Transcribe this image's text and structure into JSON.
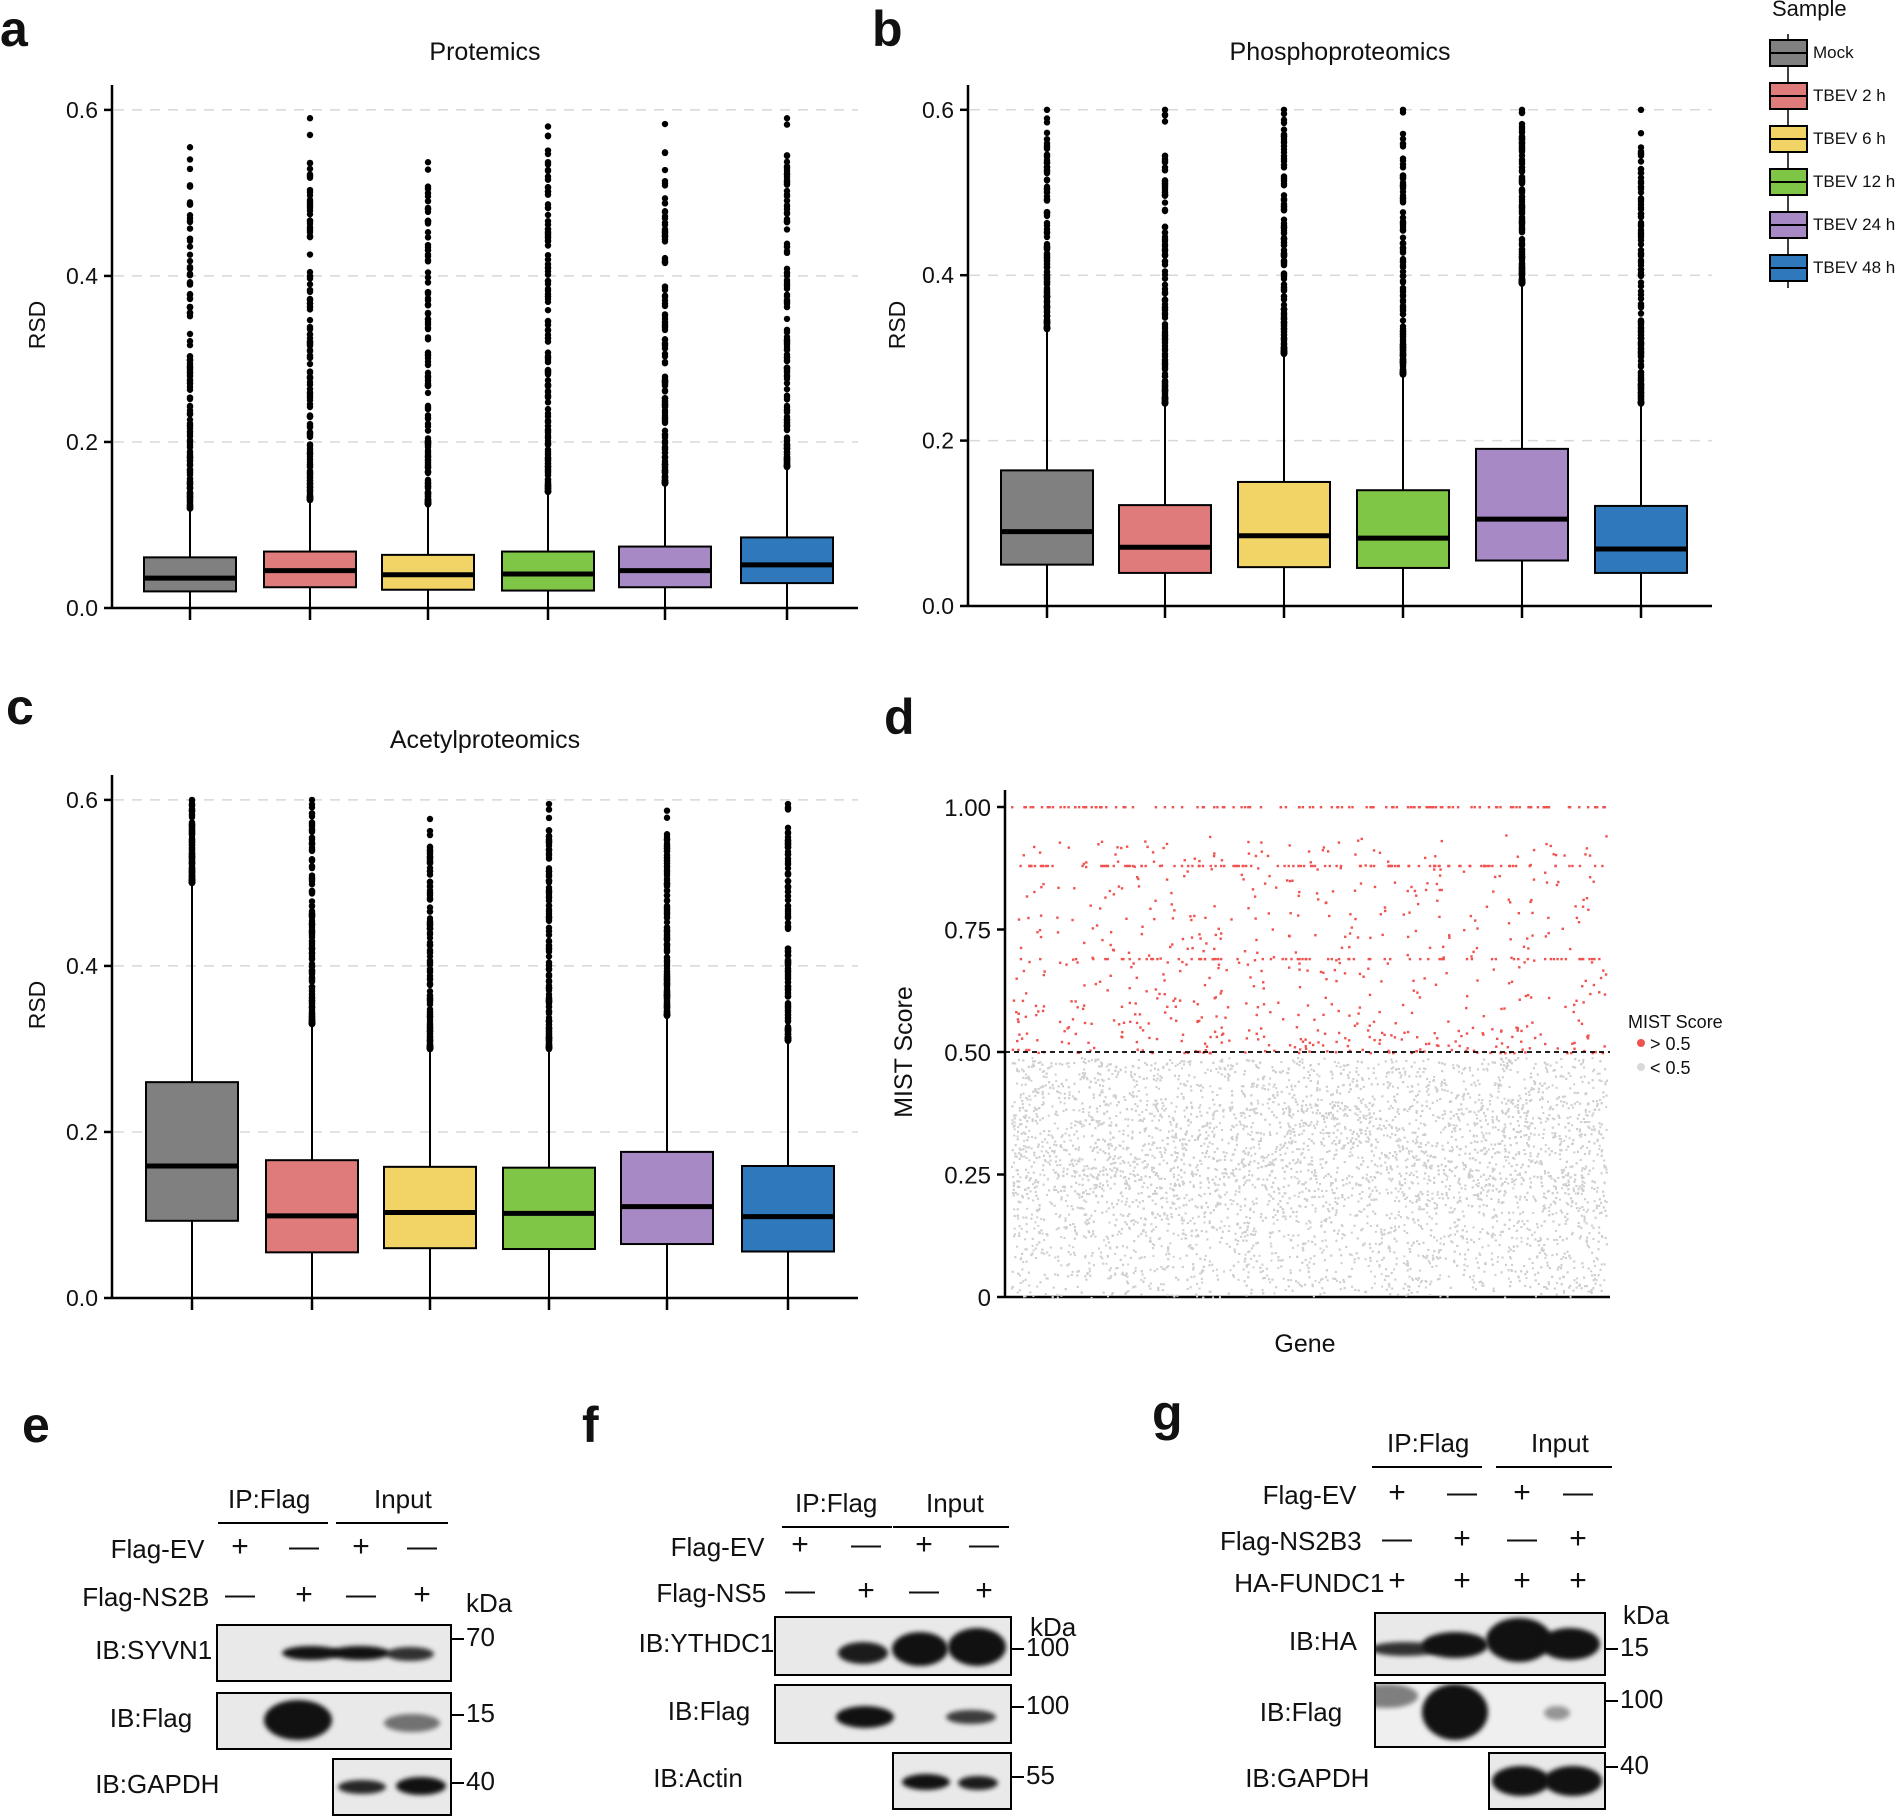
{
  "panels": {
    "a": "a",
    "b": "b",
    "c": "c",
    "d": "d",
    "e": "e",
    "f": "f",
    "g": "g"
  },
  "legend": {
    "title": "Sample",
    "entries": [
      {
        "label": "Mock",
        "color": "#808080"
      },
      {
        "label": "TBEV 2 h",
        "color": "#e07b7b"
      },
      {
        "label": "TBEV 6 h",
        "color": "#f2d466"
      },
      {
        "label": "TBEV 12 h",
        "color": "#80c646"
      },
      {
        "label": "TBEV 24 h",
        "color": "#a689c5"
      },
      {
        "label": "TBEV 48 h",
        "color": "#2f78bb"
      }
    ]
  },
  "chart_data": [
    {
      "type": "box",
      "panel": "a",
      "title": "Protemics",
      "ylabel": "RSD",
      "xlabel": "",
      "ylim": [
        0,
        0.63
      ],
      "yticks": [
        "0.0",
        "0.2",
        "0.4",
        "0.6"
      ],
      "grid": "dashed-horizontal",
      "categories": [
        "Mock",
        "TBEV 2 h",
        "TBEV 6 h",
        "TBEV 12 h",
        "TBEV 24 h",
        "TBEV 48 h"
      ],
      "boxes": [
        {
          "q1": 0.02,
          "median": 0.036,
          "q3": 0.061,
          "whisker_low": 0,
          "whisker_high": 0.12,
          "max_outlier": 0.555
        },
        {
          "q1": 0.025,
          "median": 0.045,
          "q3": 0.068,
          "whisker_low": 0,
          "whisker_high": 0.13,
          "max_outlier": 0.59
        },
        {
          "q1": 0.022,
          "median": 0.04,
          "q3": 0.064,
          "whisker_low": 0,
          "whisker_high": 0.125,
          "max_outlier": 0.537
        },
        {
          "q1": 0.021,
          "median": 0.041,
          "q3": 0.068,
          "whisker_low": 0,
          "whisker_high": 0.14,
          "max_outlier": 0.58
        },
        {
          "q1": 0.025,
          "median": 0.045,
          "q3": 0.074,
          "whisker_low": 0,
          "whisker_high": 0.15,
          "max_outlier": 0.583
        },
        {
          "q1": 0.03,
          "median": 0.052,
          "q3": 0.085,
          "whisker_low": 0,
          "whisker_high": 0.17,
          "max_outlier": 0.59
        }
      ]
    },
    {
      "type": "box",
      "panel": "b",
      "title": "Phosphoproteomics",
      "ylabel": "RSD",
      "xlabel": "",
      "ylim": [
        0,
        0.63
      ],
      "yticks": [
        "0.0",
        "0.2",
        "0.4",
        "0.6"
      ],
      "grid": "dashed-horizontal",
      "categories": [
        "Mock",
        "TBEV 2 h",
        "TBEV 6 h",
        "TBEV 12 h",
        "TBEV 24 h",
        "TBEV 48 h"
      ],
      "boxes": [
        {
          "q1": 0.05,
          "median": 0.09,
          "q3": 0.164,
          "whisker_low": 0,
          "whisker_high": 0.335,
          "max_outlier": 0.6
        },
        {
          "q1": 0.04,
          "median": 0.071,
          "q3": 0.122,
          "whisker_low": 0,
          "whisker_high": 0.245,
          "max_outlier": 0.6
        },
        {
          "q1": 0.047,
          "median": 0.085,
          "q3": 0.15,
          "whisker_low": 0,
          "whisker_high": 0.305,
          "max_outlier": 0.6
        },
        {
          "q1": 0.046,
          "median": 0.082,
          "q3": 0.14,
          "whisker_low": 0,
          "whisker_high": 0.28,
          "max_outlier": 0.6
        },
        {
          "q1": 0.055,
          "median": 0.105,
          "q3": 0.19,
          "whisker_low": 0,
          "whisker_high": 0.39,
          "max_outlier": 0.6
        },
        {
          "q1": 0.04,
          "median": 0.069,
          "q3": 0.121,
          "whisker_low": 0,
          "whisker_high": 0.245,
          "max_outlier": 0.6
        }
      ]
    },
    {
      "type": "box",
      "panel": "c",
      "title": "Acetylproteomics",
      "ylabel": "RSD",
      "xlabel": "",
      "ylim": [
        0,
        0.63
      ],
      "yticks": [
        "0.0",
        "0.2",
        "0.4",
        "0.6"
      ],
      "grid": "dashed-horizontal",
      "categories": [
        "Mock",
        "TBEV 2 h",
        "TBEV 6 h",
        "TBEV 12 h",
        "TBEV 24 h",
        "TBEV 48 h"
      ],
      "boxes": [
        {
          "q1": 0.093,
          "median": 0.159,
          "q3": 0.26,
          "whisker_low": 0,
          "whisker_high": 0.5,
          "max_outlier": 0.6
        },
        {
          "q1": 0.055,
          "median": 0.099,
          "q3": 0.166,
          "whisker_low": 0,
          "whisker_high": 0.33,
          "max_outlier": 0.6
        },
        {
          "q1": 0.06,
          "median": 0.103,
          "q3": 0.158,
          "whisker_low": 0,
          "whisker_high": 0.3,
          "max_outlier": 0.577
        },
        {
          "q1": 0.059,
          "median": 0.102,
          "q3": 0.157,
          "whisker_low": 0,
          "whisker_high": 0.3,
          "max_outlier": 0.595
        },
        {
          "q1": 0.065,
          "median": 0.11,
          "q3": 0.176,
          "whisker_low": 0,
          "whisker_high": 0.34,
          "max_outlier": 0.587
        },
        {
          "q1": 0.056,
          "median": 0.098,
          "q3": 0.159,
          "whisker_low": 0,
          "whisker_high": 0.31,
          "max_outlier": 0.595
        }
      ]
    },
    {
      "type": "scatter",
      "panel": "d",
      "title": "",
      "xlabel": "Gene",
      "ylabel": "MIST Score",
      "ylim": [
        0,
        1.05
      ],
      "yticks": [
        "0",
        "0.25",
        "0.50",
        "0.75",
        "1.00"
      ],
      "threshold": 0.5,
      "legend_title": "MIST Score",
      "series": [
        {
          "name": "> 0.5",
          "color": "#f0524f"
        },
        {
          "name": "< 0.5",
          "color": "#cfcfcf"
        }
      ]
    }
  ],
  "westerns": {
    "e": {
      "groups": [
        "IP:Flag",
        "Input"
      ],
      "rows": [
        {
          "label": "Flag-EV",
          "signs": [
            "+",
            "—",
            "+",
            "—"
          ]
        },
        {
          "label": "Flag-NS2B",
          "signs": [
            "—",
            "+",
            "—",
            "+"
          ]
        }
      ],
      "kda": "kDa",
      "blots": [
        {
          "label": "IB:SYVN1",
          "marker": "70"
        },
        {
          "label": "IB:Flag",
          "marker": "15"
        },
        {
          "label": "IB:GAPDH",
          "marker": "40"
        }
      ]
    },
    "f": {
      "groups": [
        "IP:Flag",
        "Input"
      ],
      "rows": [
        {
          "label": "Flag-EV",
          "signs": [
            "+",
            "—",
            "+",
            "—"
          ]
        },
        {
          "label": "Flag-NS5",
          "signs": [
            "—",
            "+",
            "—",
            "+"
          ]
        }
      ],
      "kda": "kDa",
      "blots": [
        {
          "label": "IB:YTHDC1",
          "marker": "100"
        },
        {
          "label": "IB:Flag",
          "marker": "100"
        },
        {
          "label": "IB:Actin",
          "marker": "55"
        }
      ]
    },
    "g": {
      "groups": [
        "IP:Flag",
        "Input"
      ],
      "rows": [
        {
          "label": "Flag-EV",
          "signs": [
            "+",
            "—",
            "+",
            "—"
          ]
        },
        {
          "label": "Flag-NS2B3",
          "signs": [
            "—",
            "+",
            "—",
            "+"
          ]
        },
        {
          "label": "HA-FUNDC1",
          "signs": [
            "+",
            "+",
            "+",
            "+"
          ]
        }
      ],
      "kda": "kDa",
      "blots": [
        {
          "label": "IB:HA",
          "marker": "15"
        },
        {
          "label": "IB:Flag",
          "marker": "100"
        },
        {
          "label": "IB:GAPDH",
          "marker": "40"
        }
      ]
    }
  }
}
